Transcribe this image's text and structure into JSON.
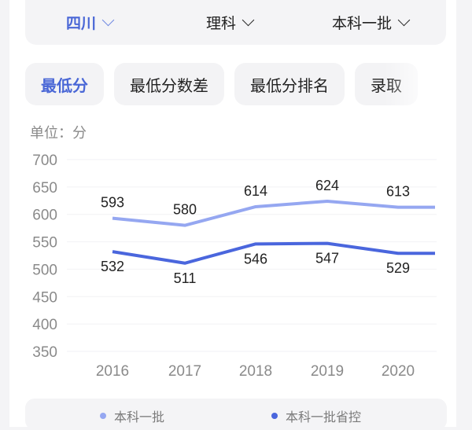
{
  "filters": [
    {
      "label": "四川",
      "active": true
    },
    {
      "label": "理科",
      "active": false
    },
    {
      "label": "本科一批",
      "active": false
    }
  ],
  "tabs": [
    {
      "label": "最低分",
      "active": true
    },
    {
      "label": "最低分数差",
      "active": false
    },
    {
      "label": "最低分排名",
      "active": false
    },
    {
      "label": "录取",
      "active": false
    }
  ],
  "unit_label": "单位：分",
  "colors": {
    "accent": "#4a67d6",
    "series_light": "#95a7f1",
    "series_dark": "#4a66dd"
  },
  "chart_data": {
    "type": "line",
    "title": "",
    "xlabel": "",
    "ylabel": "单位：分",
    "x": [
      "2016",
      "2017",
      "2018",
      "2019",
      "2020"
    ],
    "yticks": [
      700,
      650,
      600,
      550,
      500,
      450,
      400,
      350
    ],
    "ylim": [
      350,
      700
    ],
    "grid": true,
    "legend_position": "bottom",
    "series": [
      {
        "name": "本科一批",
        "values": [
          593,
          580,
          614,
          624,
          613
        ],
        "color": "#95a7f1"
      },
      {
        "name": "本科一批省控",
        "values": [
          532,
          511,
          546,
          547,
          529
        ],
        "color": "#4a66dd"
      }
    ]
  },
  "legend": [
    {
      "label": "本科一批",
      "color": "#95a7f1"
    },
    {
      "label": "本科一批省控",
      "color": "#4a66dd"
    }
  ]
}
